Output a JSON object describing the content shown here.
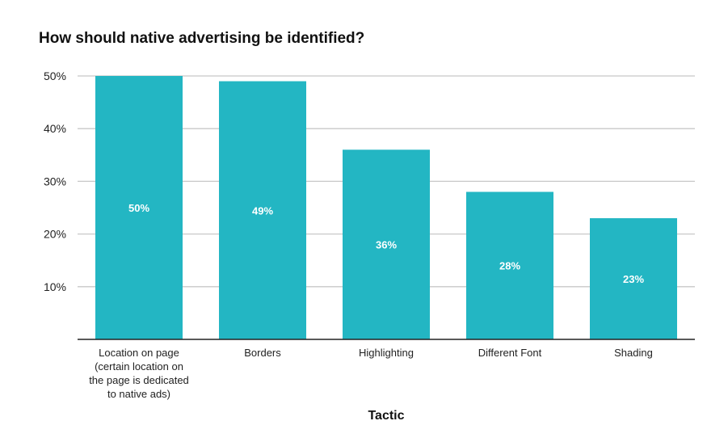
{
  "chart_data": {
    "type": "bar",
    "title": "How should native advertising be identified?",
    "xlabel": "Tactic",
    "ylabel": "",
    "categories": [
      [
        "Location on page",
        "(certain location on",
        "the page is dedicated",
        "to native ads)"
      ],
      [
        "Borders"
      ],
      [
        "Highlighting"
      ],
      [
        "Different Font"
      ],
      [
        "Shading"
      ]
    ],
    "values": [
      50,
      49,
      36,
      28,
      23
    ],
    "data_labels": [
      "50%",
      "49%",
      "36%",
      "28%",
      "23%"
    ],
    "ylim": [
      0,
      50
    ],
    "yticks": [
      10,
      20,
      30,
      40,
      50
    ],
    "ytick_labels": [
      "10%",
      "20%",
      "30%",
      "40%",
      "50%"
    ],
    "grid": true,
    "colors": {
      "bar": "#23b6c3",
      "grid": "#c8c8c8",
      "axis": "#222222"
    }
  }
}
